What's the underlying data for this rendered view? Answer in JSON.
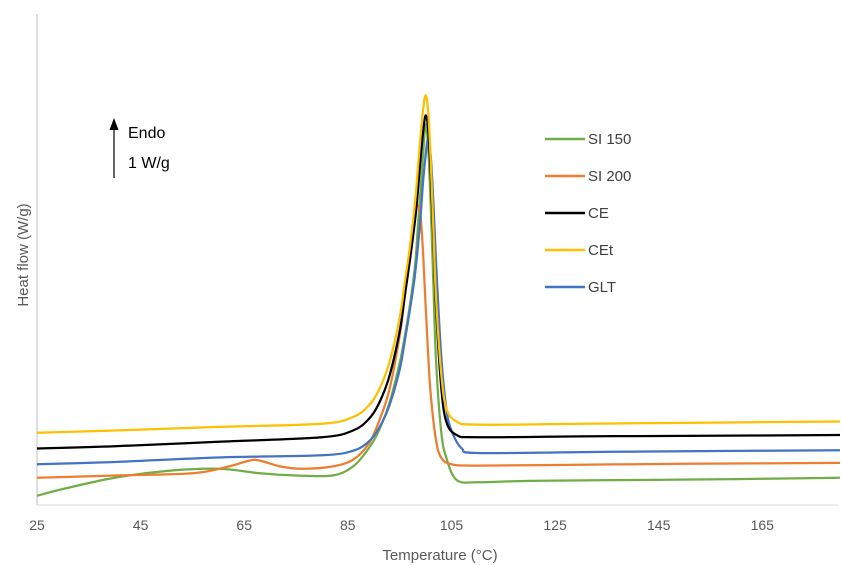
{
  "chart_data": {
    "type": "line",
    "title": "",
    "xlabel": "Temperature (°C)",
    "ylabel": "Heat flow (W/g)",
    "xlim": [
      25,
      180
    ],
    "ylim": [
      0,
      10
    ],
    "x_ticks": [
      25,
      45,
      65,
      85,
      105,
      125,
      145,
      165
    ],
    "x_tick_labels": [
      "25",
      "45",
      "65",
      "85",
      "105",
      "125",
      "145",
      "165"
    ],
    "y_tick_labels_shown": false,
    "grid": false,
    "legend_position": "top-right",
    "annotation": {
      "line1": "Endo",
      "line2": "1 W/g",
      "direction": "up"
    },
    "series": [
      {
        "name": "SI 150",
        "color": "#70ad47",
        "x": [
          25,
          30,
          40,
          50,
          60,
          68,
          75,
          82,
          86,
          89,
          91,
          93,
          95,
          96,
          97,
          98,
          98.5,
          99,
          99.5,
          100,
          100.5,
          101,
          101.5,
          102,
          103,
          104,
          106,
          110,
          120,
          140,
          160,
          180
        ],
        "y": [
          0.05,
          0.2,
          0.45,
          0.6,
          0.65,
          0.55,
          0.5,
          0.5,
          0.7,
          1.1,
          1.5,
          2.1,
          3.0,
          3.6,
          4.3,
          5.2,
          6.0,
          6.8,
          7.6,
          8.3,
          7.8,
          6.5,
          4.8,
          3.1,
          1.5,
          0.9,
          0.4,
          0.35,
          0.38,
          0.4,
          0.42,
          0.45
        ]
      },
      {
        "name": "SI 200",
        "color": "#ed7d31",
        "x": [
          25,
          40,
          55,
          62,
          65,
          67,
          69,
          72,
          76,
          82,
          86,
          89,
          91,
          93,
          95,
          96,
          97,
          98,
          98.5,
          99,
          99.5,
          100,
          100.5,
          101,
          102,
          103,
          105,
          110,
          130,
          150,
          180
        ],
        "y": [
          0.45,
          0.5,
          0.55,
          0.7,
          0.8,
          0.85,
          0.8,
          0.7,
          0.65,
          0.7,
          0.85,
          1.2,
          1.7,
          2.4,
          3.6,
          4.5,
          5.5,
          6.3,
          6.5,
          6.3,
          5.5,
          4.3,
          3.2,
          2.3,
          1.3,
          0.9,
          0.75,
          0.72,
          0.74,
          0.76,
          0.78
        ]
      },
      {
        "name": "CE",
        "color": "#000000",
        "x": [
          25,
          40,
          60,
          80,
          86,
          89,
          91,
          93,
          95,
          96,
          97,
          98,
          98.5,
          99,
          99.5,
          100,
          100.5,
          101,
          101.5,
          102,
          103,
          104,
          106,
          110,
          130,
          150,
          180
        ],
        "y": [
          1.1,
          1.15,
          1.25,
          1.35,
          1.5,
          1.75,
          2.1,
          2.7,
          3.7,
          4.5,
          5.3,
          6.2,
          6.8,
          7.5,
          8.1,
          8.5,
          8.2,
          7.2,
          5.8,
          4.3,
          2.5,
          1.7,
          1.4,
          1.35,
          1.37,
          1.38,
          1.4
        ]
      },
      {
        "name": "CEt",
        "color": "#ffc000",
        "x": [
          25,
          40,
          60,
          80,
          86,
          89,
          91,
          93,
          95,
          96,
          97,
          98,
          98.5,
          99,
          99.5,
          100,
          100.5,
          101,
          101.5,
          102,
          103,
          104,
          106,
          110,
          130,
          150,
          180
        ],
        "y": [
          1.45,
          1.5,
          1.58,
          1.65,
          1.8,
          2.05,
          2.4,
          3.0,
          4.0,
          4.8,
          5.6,
          6.6,
          7.3,
          8.0,
          8.6,
          8.95,
          8.6,
          7.5,
          6.0,
          4.5,
          2.8,
          2.0,
          1.7,
          1.63,
          1.65,
          1.67,
          1.7
        ]
      },
      {
        "name": "GLT",
        "color": "#4472c4",
        "x": [
          25,
          40,
          60,
          80,
          86,
          89,
          91,
          93,
          95,
          96,
          97,
          98,
          99,
          99.5,
          100,
          100.5,
          101,
          101.5,
          102,
          103,
          104,
          105,
          107,
          110,
          130,
          150,
          180
        ],
        "y": [
          0.75,
          0.8,
          0.9,
          0.95,
          1.05,
          1.25,
          1.55,
          2.05,
          2.85,
          3.5,
          4.2,
          5.0,
          6.2,
          7.0,
          7.6,
          8.0,
          7.6,
          6.6,
          5.3,
          3.2,
          2.0,
          1.5,
          1.1,
          1.0,
          1.02,
          1.04,
          1.06
        ]
      }
    ]
  }
}
